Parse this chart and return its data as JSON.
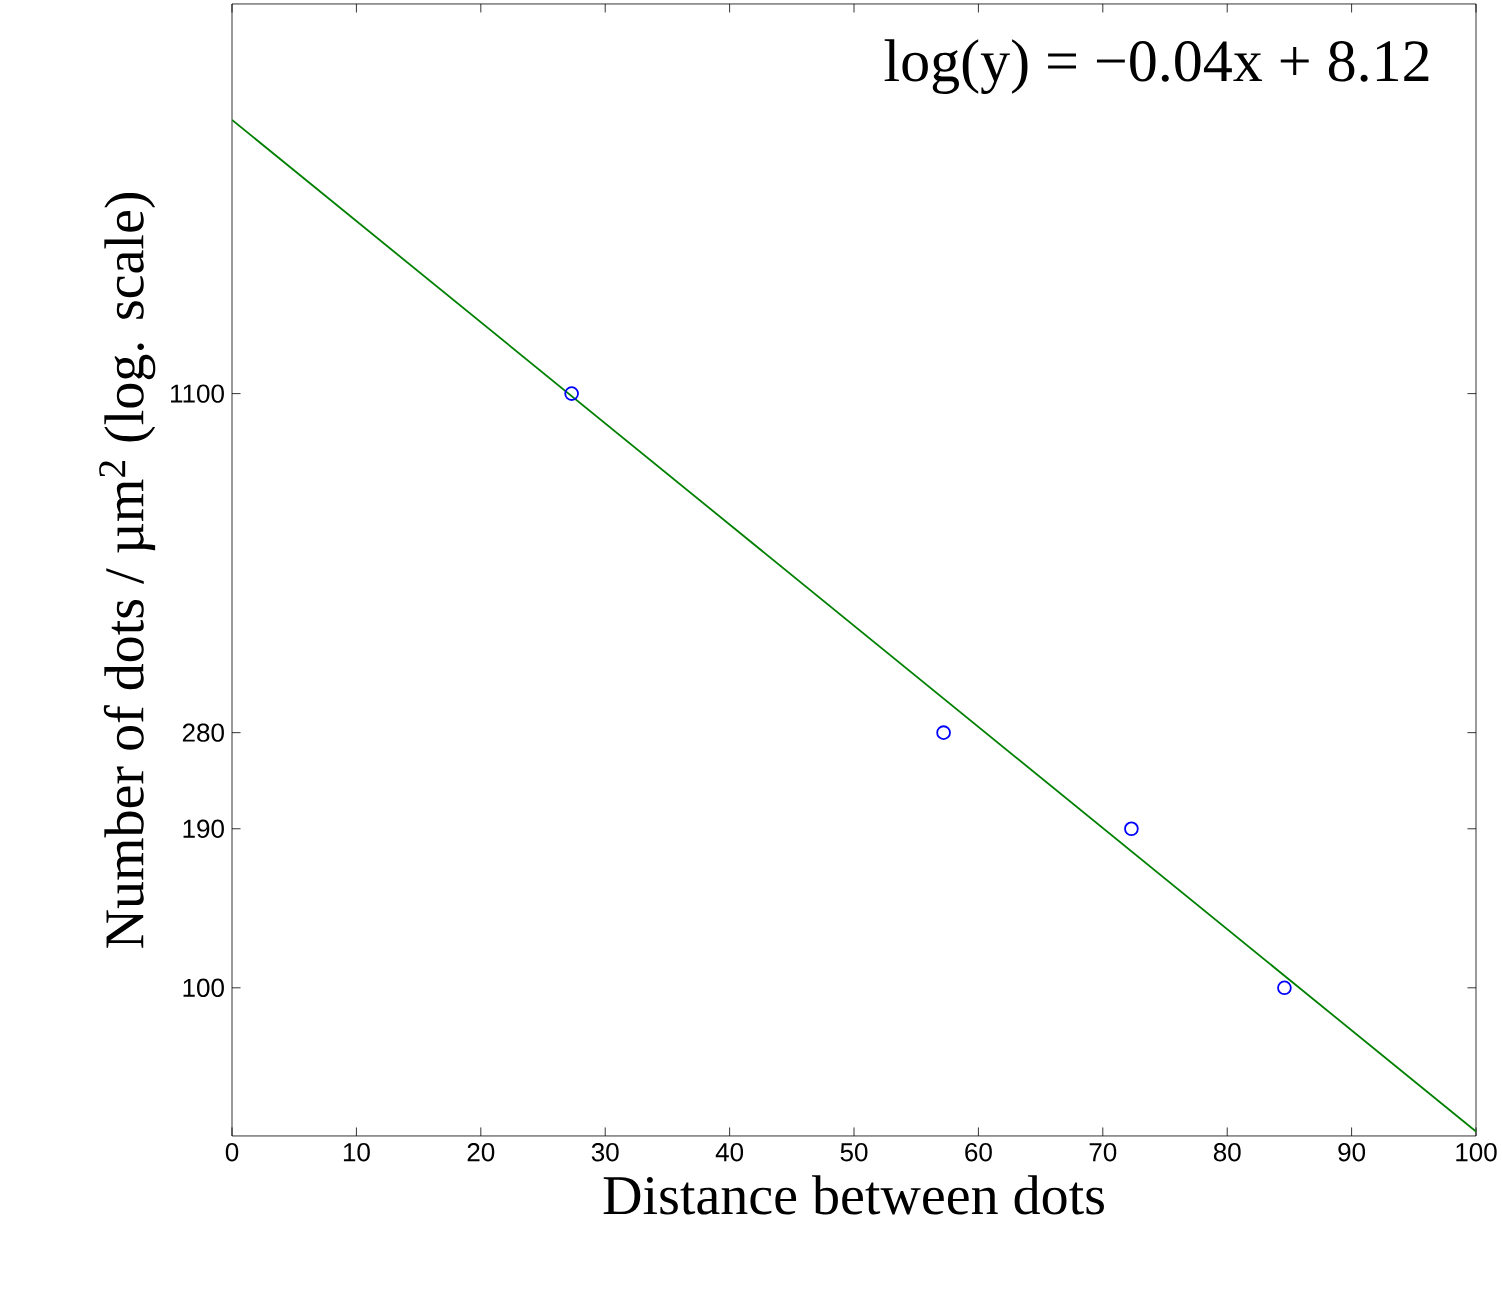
{
  "chart_data": {
    "type": "scatter",
    "xlabel": "Distance between dots",
    "ylabel": "Number of dots / µm$^{2}$ (log. scale)",
    "annotations": [
      "log(y) = −0.04x + 8.12"
    ],
    "series": [
      {
        "type": "line",
        "color": "#008000",
        "marker": "none",
        "x": [
          0,
          100
        ],
        "values": [
          3320,
          56
        ]
      },
      {
        "color": "#0000ff",
        "marker": "circle",
        "x": [
          27.3,
          57.2,
          72.3,
          84.6
        ],
        "values": [
          1100,
          280,
          190,
          100
        ]
      }
    ],
    "xlim": [
      0,
      100
    ],
    "xticks": [
      0,
      10,
      20,
      30,
      40,
      50,
      60,
      70,
      80,
      90,
      100
    ],
    "ylim": [
      55,
      5300
    ],
    "yticks": [
      100,
      190,
      280,
      1100
    ],
    "log": "y",
    "grid": false
  }
}
